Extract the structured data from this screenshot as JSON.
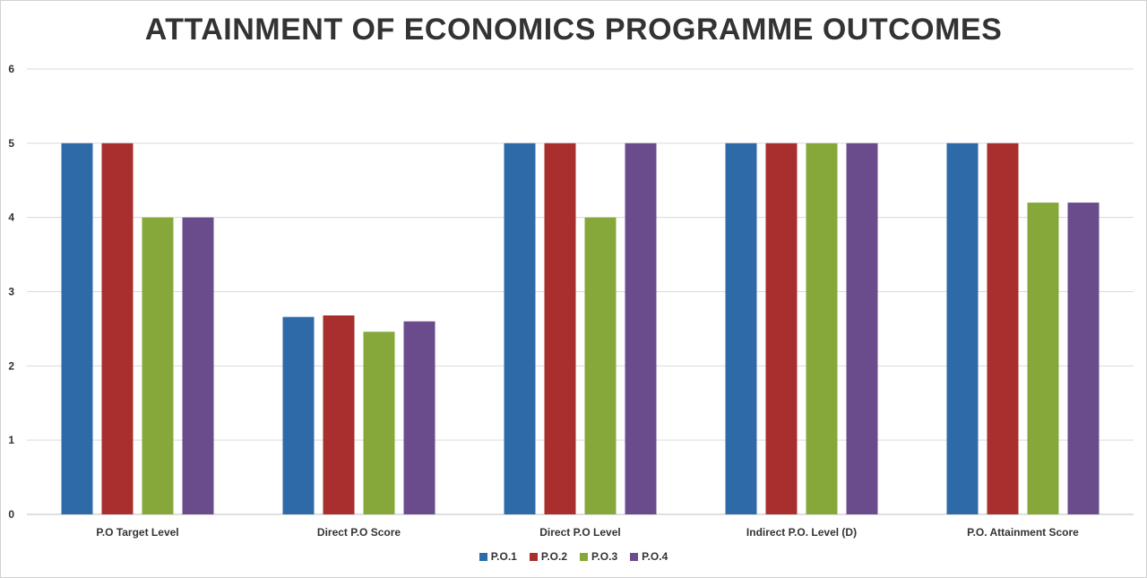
{
  "chart_data": {
    "type": "bar",
    "title": "ATTAINMENT OF ECONOMICS PROGRAMME OUTCOMES",
    "categories": [
      "P.O Target Level",
      "Direct P.O Score",
      "Direct P.O Level",
      "Indirect P.O. Level (D)",
      "P.O. Attainment Score"
    ],
    "series": [
      {
        "name": "P.O.1",
        "color": "#2e6aa8",
        "values": [
          5,
          2.66,
          5,
          5,
          5
        ]
      },
      {
        "name": "P.O.2",
        "color": "#a92e2e",
        "values": [
          5,
          2.68,
          5,
          5,
          5
        ]
      },
      {
        "name": "P.O.3",
        "color": "#86a83a",
        "values": [
          4,
          2.46,
          4,
          5,
          4.2
        ]
      },
      {
        "name": "P.O.4",
        "color": "#6a4b8c",
        "values": [
          4,
          2.6,
          5,
          5,
          4.2
        ]
      }
    ],
    "yticks": [
      "0",
      "1",
      "2",
      "3",
      "4",
      "5",
      "6"
    ],
    "ylim": [
      0,
      6
    ],
    "grid": true,
    "legend": "bottom-center"
  }
}
